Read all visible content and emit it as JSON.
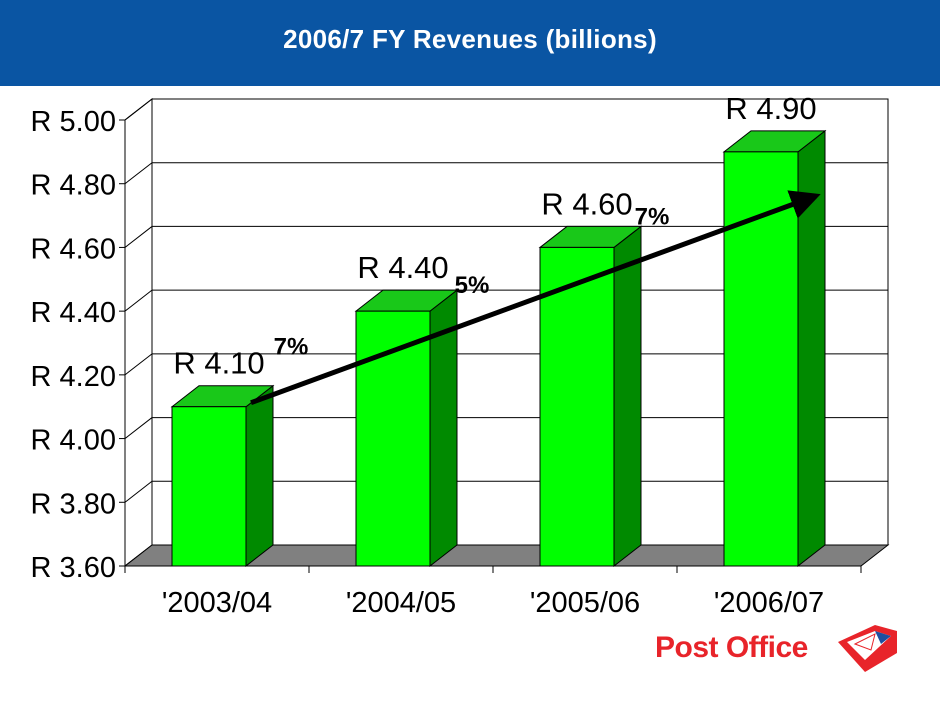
{
  "header": {
    "title": "2006/7 FY Revenues  (billions)"
  },
  "chart_data": {
    "type": "bar",
    "title": "2006/7 FY Revenues  (billions)",
    "categories": [
      "'2003/04",
      "'2004/05",
      "'2005/06",
      "'2006/07"
    ],
    "values": [
      4.1,
      4.4,
      4.6,
      4.9
    ],
    "bar_labels": [
      "R 4.10",
      "R 4.40",
      "R 4.60",
      "R 4.90"
    ],
    "y_ticks": [
      3.6,
      3.8,
      4.0,
      4.2,
      4.4,
      4.6,
      4.8,
      5.0
    ],
    "y_tick_labels": [
      "R 3.60",
      "R 3.80",
      "R 4.00",
      "R 4.20",
      "R 4.40",
      "R 4.60",
      "R 4.80",
      "R 5.00"
    ],
    "ylim": [
      3.6,
      5.0
    ],
    "growth_labels": [
      "7%",
      "5%",
      "7%"
    ],
    "grid": true,
    "style": "3d",
    "colors": {
      "bar_front": "#00ff00",
      "bar_top": "#19c819",
      "bar_side": "#008a00",
      "floor": "#808080",
      "trend_arrow": "#000000"
    }
  },
  "logo": {
    "text": "Post Office",
    "icon": "post-office-envelope-icon",
    "color": "#e8242a"
  }
}
